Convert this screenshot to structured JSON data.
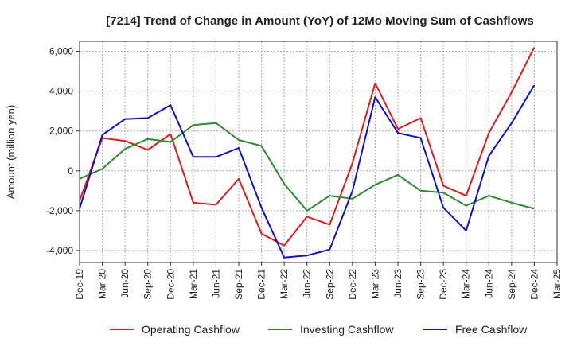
{
  "chart_data": {
    "type": "line",
    "title": "[7214]  Trend of Change in Amount (YoY) of 12Mo Moving Sum of Cashflows",
    "xlabel": "",
    "ylabel": "Amount (million yen)",
    "ylim": [
      -4600,
      6500
    ],
    "yticks": [
      -4000,
      -2000,
      0,
      2000,
      4000,
      6000
    ],
    "ytick_labels": [
      "-4,000",
      "-2,000",
      "0",
      "2,000",
      "4,000",
      "6,000"
    ],
    "grid": true,
    "legend_position": "bottom",
    "categories": [
      "Dec-19",
      "Mar-20",
      "Jun-20",
      "Sep-20",
      "Dec-20",
      "Mar-21",
      "Jun-21",
      "Sep-21",
      "Dec-21",
      "Mar-22",
      "Jun-22",
      "Sep-22",
      "Dec-22",
      "Mar-23",
      "Jun-23",
      "Sep-23",
      "Dec-23",
      "Mar-24",
      "Jun-24",
      "Sep-24",
      "Dec-24",
      "Mar-25"
    ],
    "series": [
      {
        "name": "Operating Cashflow",
        "color": "#e41a1c",
        "values": [
          -1500,
          1650,
          1500,
          1050,
          1850,
          -1600,
          -1700,
          -400,
          -3150,
          -3750,
          -2300,
          -2700,
          400,
          4400,
          2100,
          2650,
          -750,
          -1250,
          1900,
          3950,
          6200,
          null
        ]
      },
      {
        "name": "Investing Cashflow",
        "color": "#2e8b2e",
        "values": [
          -400,
          100,
          1100,
          1600,
          1450,
          2300,
          2400,
          1550,
          1250,
          -650,
          -2000,
          -1250,
          -1400,
          -700,
          -200,
          -1000,
          -1100,
          -1750,
          -1250,
          -1600,
          -1900,
          null
        ]
      },
      {
        "name": "Free Cashflow",
        "color": "#1010cc",
        "values": [
          -1900,
          1800,
          2600,
          2650,
          3300,
          700,
          700,
          1150,
          -1850,
          -4350,
          -4250,
          -3950,
          -1000,
          3700,
          1900,
          1650,
          -1850,
          -3000,
          750,
          2400,
          4300,
          null
        ]
      }
    ]
  }
}
